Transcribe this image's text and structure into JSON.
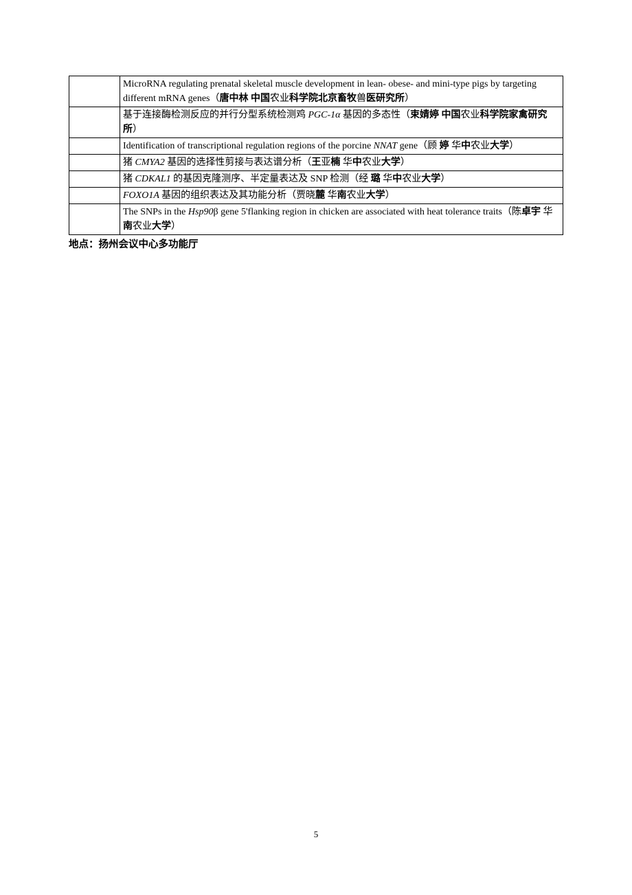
{
  "rows": [
    {
      "parts": [
        {
          "text": "MicroRNA regulating prenatal skeletal muscle development in lean- obese- and mini-type pigs by targeting different mRNA genes（",
          "bold": false,
          "italic": false
        },
        {
          "text": "唐中林  中国",
          "bold": true,
          "italic": false
        },
        {
          "text": "农业",
          "bold": false,
          "italic": false
        },
        {
          "text": "科学院北京畜牧",
          "bold": true,
          "italic": false
        },
        {
          "text": "兽",
          "bold": false,
          "italic": false
        },
        {
          "text": "医研究所",
          "bold": true,
          "italic": false
        },
        {
          "text": "）",
          "bold": false,
          "italic": false
        }
      ]
    },
    {
      "parts": [
        {
          "text": "基于连接酶检测反应的并行分型系统检测鸡 ",
          "bold": false,
          "italic": false
        },
        {
          "text": "PGC-1α",
          "bold": false,
          "italic": true
        },
        {
          "text": " 基因的多态性（",
          "bold": false,
          "italic": false
        },
        {
          "text": "束婧婷  中国",
          "bold": true,
          "italic": false
        },
        {
          "text": "农业",
          "bold": false,
          "italic": false
        },
        {
          "text": "科学院家禽研究所",
          "bold": true,
          "italic": false
        },
        {
          "text": "）",
          "bold": false,
          "italic": false
        }
      ]
    },
    {
      "parts": [
        {
          "text": "Identification of transcriptional regulation regions of the porcine ",
          "bold": false,
          "italic": false
        },
        {
          "text": "NNAT",
          "bold": false,
          "italic": true
        },
        {
          "text": " gene（顾  ",
          "bold": false,
          "italic": false
        },
        {
          "text": "婷",
          "bold": true,
          "italic": false
        },
        {
          "text": "  华",
          "bold": false,
          "italic": false
        },
        {
          "text": "中",
          "bold": true,
          "italic": false
        },
        {
          "text": "农业",
          "bold": false,
          "italic": false
        },
        {
          "text": "大学",
          "bold": true,
          "italic": false
        },
        {
          "text": "）",
          "bold": false,
          "italic": false
        }
      ]
    },
    {
      "parts": [
        {
          "text": "猪 ",
          "bold": false,
          "italic": false
        },
        {
          "text": "CMYA2 ",
          "bold": false,
          "italic": true
        },
        {
          "text": "基因的选择性剪接与表达谱分析（",
          "bold": false,
          "italic": false
        },
        {
          "text": "王",
          "bold": true,
          "italic": false
        },
        {
          "text": "亚",
          "bold": false,
          "italic": false
        },
        {
          "text": "楠",
          "bold": true,
          "italic": false
        },
        {
          "text": "  华",
          "bold": false,
          "italic": false
        },
        {
          "text": "中",
          "bold": true,
          "italic": false
        },
        {
          "text": "农业",
          "bold": false,
          "italic": false
        },
        {
          "text": "大学",
          "bold": true,
          "italic": false
        },
        {
          "text": "）",
          "bold": false,
          "italic": false
        }
      ]
    },
    {
      "parts": [
        {
          "text": "猪 ",
          "bold": false,
          "italic": false
        },
        {
          "text": "CDKAL1 ",
          "bold": false,
          "italic": true
        },
        {
          "text": "的基因克隆测序、半定量表达及 SNP 检测（经  ",
          "bold": false,
          "italic": false
        },
        {
          "text": "璐",
          "bold": true,
          "italic": false
        },
        {
          "text": "  华",
          "bold": false,
          "italic": false
        },
        {
          "text": "中",
          "bold": true,
          "italic": false
        },
        {
          "text": "农业",
          "bold": false,
          "italic": false
        },
        {
          "text": "大学",
          "bold": true,
          "italic": false
        },
        {
          "text": "）",
          "bold": false,
          "italic": false
        }
      ]
    },
    {
      "parts": [
        {
          "text": "FOXO1A ",
          "bold": false,
          "italic": true
        },
        {
          "text": "基因的组织表达及其功能分析（贾晓",
          "bold": false,
          "italic": false
        },
        {
          "text": "麓",
          "bold": true,
          "italic": false
        },
        {
          "text": "  华",
          "bold": false,
          "italic": false
        },
        {
          "text": "南",
          "bold": true,
          "italic": false
        },
        {
          "text": "农业",
          "bold": false,
          "italic": false
        },
        {
          "text": "大学",
          "bold": true,
          "italic": false
        },
        {
          "text": "）",
          "bold": false,
          "italic": false
        }
      ]
    },
    {
      "parts": [
        {
          "text": "The SNPs in the ",
          "bold": false,
          "italic": false
        },
        {
          "text": "Hsp90",
          "bold": false,
          "italic": true
        },
        {
          "text": "β gene 5'flanking region in chicken are associated with heat tolerance traits（陈",
          "bold": false,
          "italic": false
        },
        {
          "text": "卓宇",
          "bold": true,
          "italic": false
        },
        {
          "text": "  华",
          "bold": false,
          "italic": false
        },
        {
          "text": "南",
          "bold": true,
          "italic": false
        },
        {
          "text": "农业",
          "bold": false,
          "italic": false
        },
        {
          "text": "大学",
          "bold": true,
          "italic": false
        },
        {
          "text": "）",
          "bold": false,
          "italic": false
        }
      ]
    }
  ],
  "footer_label": "地点：扬州会议中心多功能厅",
  "page_number": "5"
}
